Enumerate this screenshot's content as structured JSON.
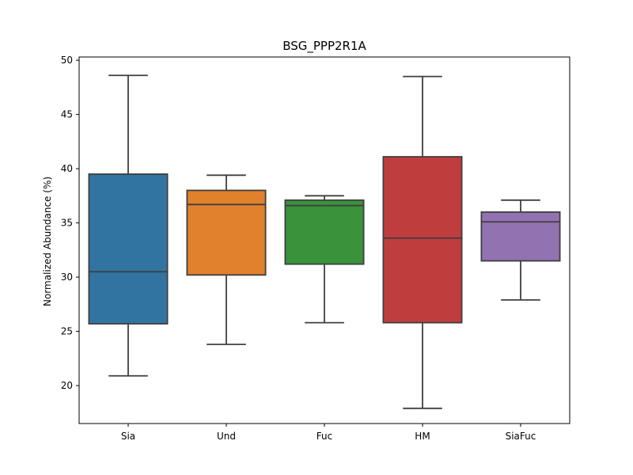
{
  "chart_data": {
    "type": "box",
    "title": "BSG_PPP2R1A",
    "xlabel": "",
    "ylabel": "Normalized Abundance (%)",
    "ylim": [
      16.5,
      50.3
    ],
    "yticks": [
      20,
      25,
      30,
      35,
      40,
      45,
      50
    ],
    "grid": false,
    "categories": [
      "Sia",
      "Und",
      "Fuc",
      "HM",
      "SiaFuc"
    ],
    "boxes": [
      {
        "category": "Sia",
        "whisker_low": 20.9,
        "q1": 25.7,
        "median": 30.5,
        "q3": 39.5,
        "whisker_high": 48.6,
        "color": "#3274a1"
      },
      {
        "category": "Und",
        "whisker_low": 23.8,
        "q1": 30.2,
        "median": 36.7,
        "q3": 38.0,
        "whisker_high": 39.4,
        "color": "#e1812c"
      },
      {
        "category": "Fuc",
        "whisker_low": 25.8,
        "q1": 31.2,
        "median": 36.6,
        "q3": 37.1,
        "whisker_high": 37.5,
        "color": "#3a923a"
      },
      {
        "category": "HM",
        "whisker_low": 17.9,
        "q1": 25.8,
        "median": 33.6,
        "q3": 41.1,
        "whisker_high": 48.5,
        "color": "#c03d3e"
      },
      {
        "category": "SiaFuc",
        "whisker_low": 27.9,
        "q1": 31.5,
        "median": 35.1,
        "q3": 36.0,
        "whisker_high": 37.1,
        "color": "#9372b2"
      }
    ]
  }
}
